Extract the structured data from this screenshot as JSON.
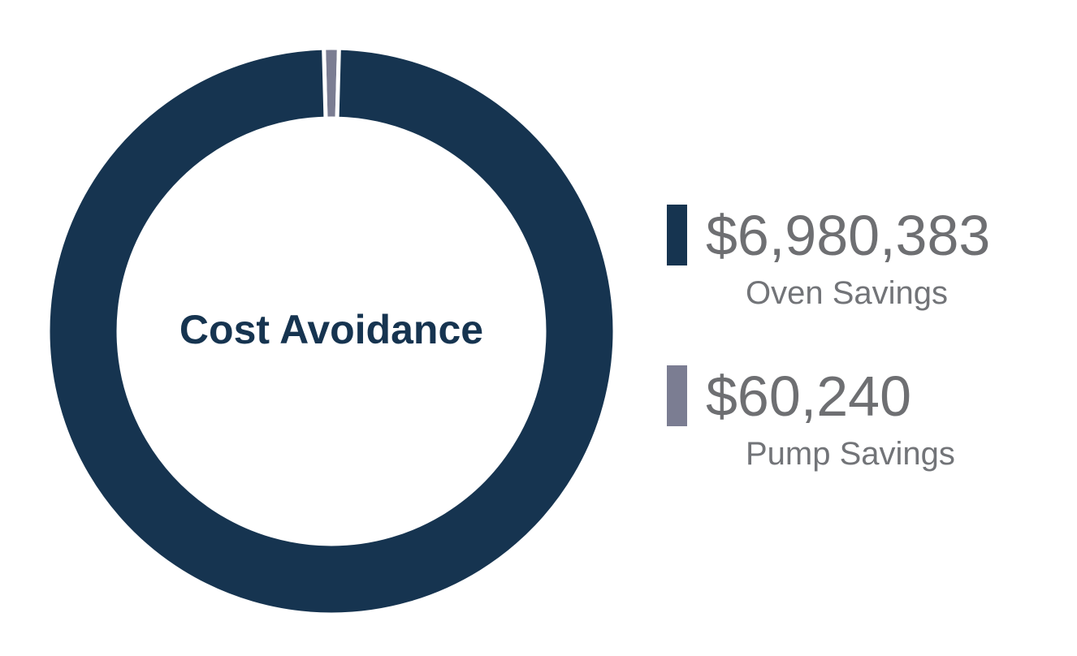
{
  "chart_data": {
    "type": "pie",
    "title": "Cost Avoidance",
    "categories": [
      "Oven Savings",
      "Pump Savings"
    ],
    "values": [
      6980383,
      60240
    ],
    "value_labels": [
      "$6,980,383",
      "$60,240"
    ],
    "colors": [
      "#163450",
      "#7b7d92"
    ],
    "donut": true,
    "legend_position": "right"
  }
}
